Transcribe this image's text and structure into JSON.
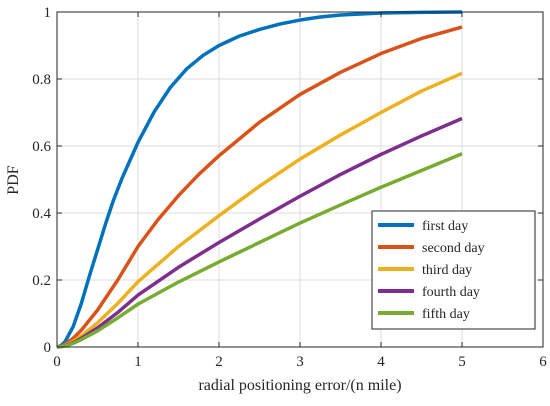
{
  "chart_data": {
    "type": "line",
    "title": "",
    "xlabel": "radial positioning error/(n mile)",
    "ylabel": "PDF",
    "xlim": [
      0,
      6
    ],
    "ylim": [
      0,
      1
    ],
    "xticks": [
      0,
      1,
      2,
      3,
      4,
      5,
      6
    ],
    "yticks": [
      0,
      0.2,
      0.4,
      0.6,
      0.8,
      1
    ],
    "xtick_labels": [
      "0",
      "1",
      "2",
      "3",
      "4",
      "5",
      "6"
    ],
    "ytick_labels": [
      "0",
      "0.2",
      "0.4",
      "0.6",
      "0.8",
      "1"
    ],
    "grid": true,
    "legend_position": "bottom-right",
    "series": [
      {
        "name": "first day",
        "color": "#0072BD",
        "x": [
          0,
          0.05,
          0.1,
          0.2,
          0.3,
          0.4,
          0.5,
          0.6,
          0.7,
          0.8,
          1,
          1.2,
          1.4,
          1.6,
          1.8,
          2,
          2.25,
          2.5,
          2.75,
          3,
          3.25,
          3.5,
          4,
          4.5,
          5
        ],
        "y": [
          0,
          0.004,
          0.016,
          0.061,
          0.13,
          0.212,
          0.29,
          0.368,
          0.44,
          0.502,
          0.611,
          0.702,
          0.775,
          0.83,
          0.87,
          0.9,
          0.928,
          0.948,
          0.964,
          0.976,
          0.985,
          0.991,
          0.997,
          0.999,
          1.0
        ]
      },
      {
        "name": "second day",
        "color": "#D95319",
        "x": [
          0,
          0.05,
          0.1,
          0.2,
          0.3,
          0.5,
          0.75,
          1,
          1.25,
          1.5,
          1.75,
          2,
          2.5,
          3,
          3.5,
          4,
          4.5,
          5
        ],
        "y": [
          0,
          0.002,
          0.008,
          0.026,
          0.05,
          0.11,
          0.2,
          0.3,
          0.381,
          0.452,
          0.515,
          0.571,
          0.671,
          0.754,
          0.82,
          0.876,
          0.921,
          0.955
        ]
      },
      {
        "name": "third day",
        "color": "#EDB120",
        "x": [
          0,
          0.05,
          0.1,
          0.2,
          0.3,
          0.5,
          0.75,
          1,
          1.5,
          2,
          2.5,
          3,
          3.5,
          4,
          4.5,
          5
        ],
        "y": [
          0,
          0.001,
          0.005,
          0.017,
          0.033,
          0.072,
          0.13,
          0.195,
          0.3,
          0.392,
          0.48,
          0.561,
          0.633,
          0.7,
          0.764,
          0.817
        ]
      },
      {
        "name": "fourth day",
        "color": "#7E2F8E",
        "x": [
          0,
          0.05,
          0.1,
          0.2,
          0.3,
          0.5,
          0.75,
          1,
          1.5,
          2,
          2.5,
          3,
          3.5,
          4,
          4.5,
          5
        ],
        "y": [
          0,
          0.001,
          0.004,
          0.013,
          0.026,
          0.057,
          0.103,
          0.155,
          0.238,
          0.312,
          0.382,
          0.45,
          0.515,
          0.575,
          0.63,
          0.682
        ]
      },
      {
        "name": "fifth day",
        "color": "#77AC30",
        "x": [
          0,
          0.05,
          0.1,
          0.2,
          0.3,
          0.5,
          0.75,
          1,
          1.5,
          2,
          2.5,
          3,
          3.5,
          4,
          4.5,
          5
        ],
        "y": [
          0,
          0.001,
          0.003,
          0.011,
          0.022,
          0.048,
          0.087,
          0.128,
          0.194,
          0.254,
          0.312,
          0.37,
          0.424,
          0.477,
          0.527,
          0.577
        ]
      }
    ]
  }
}
